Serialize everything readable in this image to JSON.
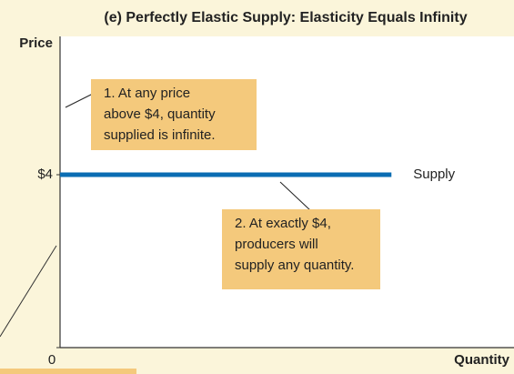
{
  "chart_data": {
    "type": "line",
    "title": "(e) Perfectly Elastic Supply: Elasticity Equals Infinity",
    "y_label": "Price",
    "x_label": "Quantity",
    "x": [
      0,
      7.3
    ],
    "series": [
      {
        "name": "Supply",
        "color": "#0a6db3",
        "values": [
          4,
          4
        ]
      }
    ],
    "xlim": [
      0,
      10
    ],
    "ylim": [
      0,
      7.2
    ],
    "yticks": [
      {
        "value": 4,
        "label": "$4"
      },
      0
    ],
    "annotations": [
      {
        "lines": [
          "1. At any price",
          "above $4, quantity",
          "supplied is infinite."
        ]
      },
      {
        "lines": [
          "2. At exactly $4,",
          "producers will",
          "supply any quantity."
        ]
      }
    ],
    "annotation_color": "#f4c97c"
  }
}
